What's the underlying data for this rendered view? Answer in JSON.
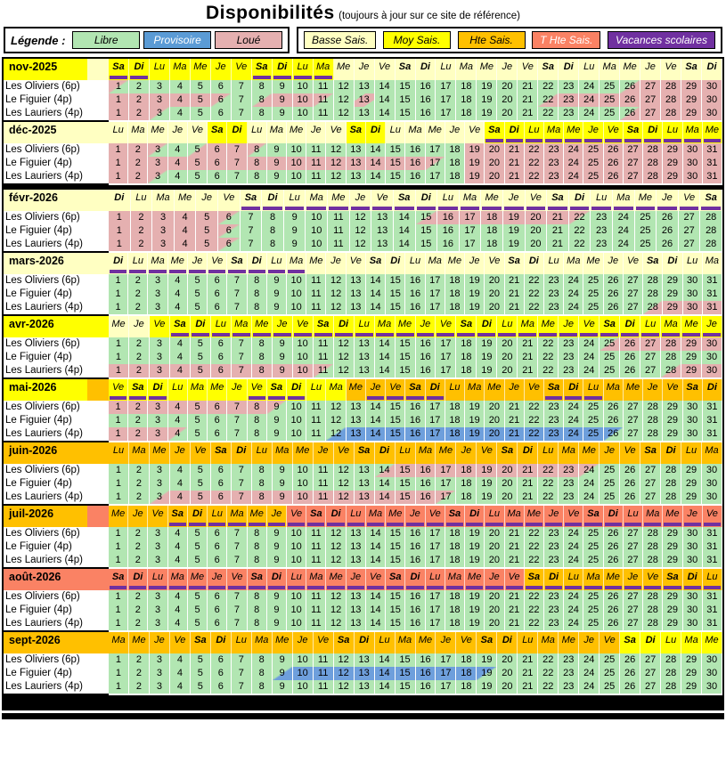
{
  "title": "Disponibilités",
  "subtitle": "(toujours à jour sur ce site de référence)",
  "legend": {
    "label": "Légende :",
    "items": [
      {
        "label": "Libre",
        "bg": "#B2E6B2",
        "fg": "#000000"
      },
      {
        "label": "Provisoire",
        "bg": "#5B9BD5",
        "fg": "#FFFFFF"
      },
      {
        "label": "Loué",
        "bg": "#E5B0B0",
        "fg": "#000000"
      }
    ],
    "seasons": [
      {
        "label": "Basse Sais.",
        "bg": "#FFFFC2",
        "fg": "#000000"
      },
      {
        "label": "Moy Sais.",
        "bg": "#FFFF00",
        "fg": "#000000"
      },
      {
        "label": "Hte Sais.",
        "bg": "#FFC000",
        "fg": "#000000"
      },
      {
        "label": "T Hte Sais.",
        "bg": "#FA8264",
        "fg": "#FFFFFF"
      },
      {
        "label": "Vacances scolaires",
        "bg": "#7030A0",
        "fg": "#FFFFFF"
      }
    ]
  },
  "colors": {
    "free": "#B2E6B2",
    "booked": "#E5B0B0",
    "provisional": "#6E9FDC",
    "pale": "#FFFFC2",
    "yellow": "#FFFF00",
    "orange": "#FFC000",
    "salmon": "#FA8264",
    "purple": "#7030A0"
  },
  "properties": [
    "Les Oliviers (6p)",
    "Le Figuier (4p)",
    "Les Lauriers (4p)"
  ],
  "dow_cycle": [
    "Lu",
    "Ma",
    "Me",
    "Je",
    "Ve",
    "Sa",
    "Di"
  ],
  "months": [
    {
      "name": "nov-2025",
      "start": "Sa",
      "n": 30,
      "sep": "none",
      "label_bg": "yellow",
      "filler_bg": "pale",
      "hdr": [
        [
          "yellow",
          1,
          11
        ],
        [
          "pale",
          12,
          30
        ]
      ],
      "vac": [
        [
          1,
          2
        ],
        [
          8,
          11
        ]
      ],
      "rows": [
        [
          [
            "PG",
            1
          ],
          [
            "G",
            24
          ],
          [
            "GP",
            1
          ],
          [
            "P",
            4
          ]
        ],
        [
          [
            "P",
            5
          ],
          [
            "PG",
            1
          ],
          [
            "G",
            1
          ],
          [
            "GP",
            1
          ],
          [
            "P",
            2
          ],
          [
            "PG",
            1
          ],
          [
            "G",
            1
          ],
          [
            "GPG",
            1
          ],
          [
            "G",
            8
          ],
          [
            "GP",
            1
          ],
          [
            "P",
            8
          ]
        ],
        [
          [
            "P",
            2
          ],
          [
            "PG",
            1
          ],
          [
            "G",
            22
          ],
          [
            "GP",
            1
          ],
          [
            "P",
            4
          ]
        ]
      ]
    },
    {
      "name": "déc-2025",
      "start": "Lu",
      "n": 31,
      "sep": "thin",
      "label_bg": "pale",
      "filler_bg": "pale",
      "hdr": [
        [
          "pale",
          1,
          5
        ],
        [
          "yellow",
          6,
          7
        ],
        [
          "pale",
          8,
          12
        ],
        [
          "yellow",
          13,
          14
        ],
        [
          "pale",
          15,
          19
        ],
        [
          "yellow",
          20,
          31
        ]
      ],
      "vac": [
        [
          20,
          31
        ]
      ],
      "rows": [
        [
          [
            "P",
            2
          ],
          [
            "PG",
            1
          ],
          [
            "G",
            1
          ],
          [
            "GP",
            1
          ],
          [
            "P",
            2
          ],
          [
            "PG",
            1
          ],
          [
            "G",
            10
          ],
          [
            "P",
            13
          ]
        ],
        [
          [
            "P",
            16
          ],
          [
            "PG",
            1
          ],
          [
            "G",
            1
          ],
          [
            "P",
            13
          ]
        ],
        [
          [
            "P",
            2
          ],
          [
            "PG",
            1
          ],
          [
            "G",
            15
          ],
          [
            "P",
            13
          ]
        ]
      ]
    },
    {
      "name": "févr-2026",
      "start": "Di",
      "n": 28,
      "sep": "thick",
      "label_bg": "pale",
      "filler_bg": "pale",
      "hdr": [
        [
          "pale",
          1,
          28
        ]
      ],
      "vac": [
        [
          7,
          28
        ]
      ],
      "rows": [
        [
          [
            "P",
            5
          ],
          [
            "PG",
            1
          ],
          [
            "G",
            8
          ],
          [
            "GP",
            1
          ],
          [
            "P",
            6
          ],
          [
            "PG",
            1
          ],
          [
            "G",
            6
          ]
        ],
        [
          [
            "P",
            5
          ],
          [
            "PG",
            1
          ],
          [
            "G",
            22
          ]
        ],
        [
          [
            "P",
            5
          ],
          [
            "PG",
            1
          ],
          [
            "G",
            22
          ]
        ]
      ]
    },
    {
      "name": "mars-2026",
      "start": "Di",
      "n": 31,
      "sep": "thin",
      "label_bg": "pale",
      "filler_bg": "pale",
      "hdr": [
        [
          "pale",
          1,
          31
        ]
      ],
      "vac": [
        [
          1,
          10
        ]
      ],
      "rows": [
        [
          [
            "G",
            31
          ]
        ],
        [
          [
            "G",
            31
          ]
        ],
        [
          [
            "G",
            27
          ],
          [
            "GP",
            1
          ],
          [
            "P",
            3
          ]
        ]
      ]
    },
    {
      "name": "avr-2026",
      "start": "Me",
      "n": 30,
      "sep": "thin",
      "label_bg": "yellow",
      "filler_bg": "yellow",
      "hdr": [
        [
          "pale",
          1,
          2
        ],
        [
          "yellow",
          3,
          30
        ]
      ],
      "vac": [
        [
          4,
          30
        ]
      ],
      "rows": [
        [
          [
            "G",
            24
          ],
          [
            "GP",
            1
          ],
          [
            "P",
            5
          ]
        ],
        [
          [
            "G",
            30
          ]
        ],
        [
          [
            "P",
            10
          ],
          [
            "PG",
            1
          ],
          [
            "G",
            16
          ],
          [
            "GP",
            1
          ],
          [
            "P",
            2
          ]
        ]
      ]
    },
    {
      "name": "mai-2026",
      "start": "Ve",
      "n": 31,
      "sep": "thin",
      "label_bg": "yellow",
      "filler_bg": "orange",
      "hdr": [
        [
          "yellow",
          1,
          12
        ],
        [
          "orange",
          13,
          31
        ]
      ],
      "vac": [
        [
          1,
          3
        ],
        [
          8,
          10
        ],
        [
          14,
          17
        ],
        [
          23,
          25
        ]
      ],
      "rows": [
        [
          [
            "P",
            8
          ],
          [
            "PG",
            1
          ],
          [
            "G",
            22
          ]
        ],
        [
          [
            "G",
            31
          ]
        ],
        [
          [
            "P",
            3
          ],
          [
            "PG",
            1
          ],
          [
            "G",
            7
          ],
          [
            "GB",
            1
          ],
          [
            "B",
            13
          ],
          [
            "BG",
            1
          ],
          [
            "G",
            5
          ]
        ]
      ]
    },
    {
      "name": "juin-2026",
      "start": "Lu",
      "n": 30,
      "sep": "thin",
      "label_bg": "orange",
      "filler_bg": "orange",
      "hdr": [
        [
          "orange",
          1,
          30
        ]
      ],
      "vac": [],
      "rows": [
        [
          [
            "G",
            13
          ],
          [
            "GP",
            1
          ],
          [
            "P",
            9
          ],
          [
            "PG",
            1
          ],
          [
            "G",
            6
          ]
        ],
        [
          [
            "G",
            30
          ]
        ],
        [
          [
            "G",
            2
          ],
          [
            "GP",
            1
          ],
          [
            "P",
            13
          ],
          [
            "PG",
            1
          ],
          [
            "G",
            13
          ]
        ]
      ]
    },
    {
      "name": "juil-2026",
      "start": "Me",
      "n": 31,
      "sep": "thin",
      "label_bg": "orange",
      "filler_bg": "salmon",
      "hdr": [
        [
          "orange",
          1,
          9
        ],
        [
          "salmon",
          10,
          31
        ]
      ],
      "vac": [
        [
          4,
          31
        ]
      ],
      "rows": [
        [
          [
            "G",
            31
          ]
        ],
        [
          [
            "G",
            31
          ]
        ],
        [
          [
            "G",
            31
          ]
        ]
      ]
    },
    {
      "name": "août-2026",
      "start": "Sa",
      "n": 31,
      "sep": "thin",
      "label_bg": "salmon",
      "filler_bg": "salmon",
      "hdr": [
        [
          "salmon",
          1,
          21
        ],
        [
          "orange",
          22,
          31
        ]
      ],
      "vac": [
        [
          1,
          31
        ]
      ],
      "rows": [
        [
          [
            "G",
            31
          ]
        ],
        [
          [
            "G",
            31
          ]
        ],
        [
          [
            "G",
            31
          ]
        ]
      ]
    },
    {
      "name": "sept-2026",
      "start": "Ma",
      "n": 30,
      "sep": "thin",
      "label_bg": "orange",
      "filler_bg": "orange",
      "hdr": [
        [
          "orange",
          1,
          25
        ],
        [
          "yellow",
          26,
          30
        ]
      ],
      "vac": [],
      "rows": [
        [
          [
            "G",
            30
          ]
        ],
        [
          [
            "G",
            8
          ],
          [
            "GB",
            1
          ],
          [
            "B",
            9
          ],
          [
            "BG",
            1
          ],
          [
            "G",
            11
          ]
        ],
        [
          [
            "G",
            30
          ]
        ]
      ]
    }
  ]
}
